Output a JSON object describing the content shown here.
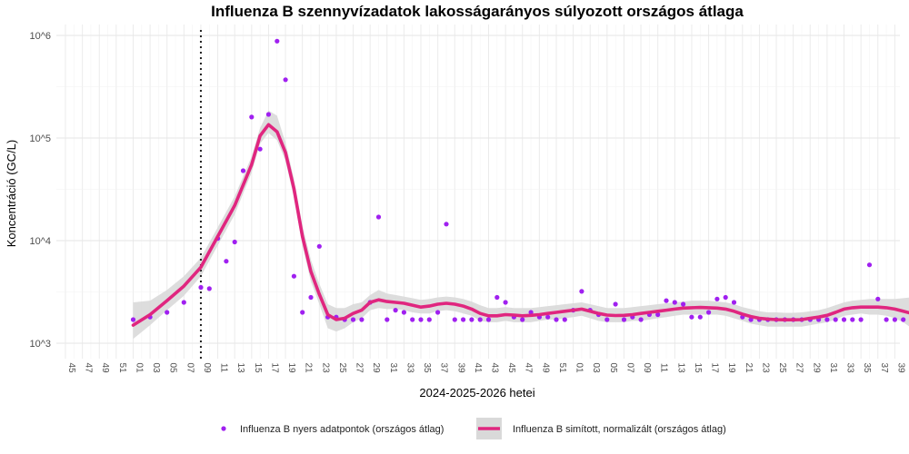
{
  "chart_data": {
    "type": "scatter+line",
    "title": "Influenza B szennyvízadatok lakosságarányos súlyozott országos átlaga",
    "xlabel": "2024-2025-2026 hetei",
    "ylabel": "Koncentráció (GC/L)",
    "y_scale": "log10",
    "y_ticks": [
      {
        "value": 1000,
        "label": "10^3"
      },
      {
        "value": 10000,
        "label": "10^4"
      },
      {
        "value": 100000,
        "label": "10^5"
      },
      {
        "value": 1000000,
        "label": "10^6"
      }
    ],
    "x_tick_labels": [
      "45",
      "47",
      "49",
      "51",
      "01",
      "03",
      "05",
      "07",
      "09",
      "11",
      "13",
      "15",
      "17",
      "19",
      "21",
      "23",
      "25",
      "27",
      "29",
      "31",
      "33",
      "35",
      "37",
      "39",
      "41",
      "43",
      "45",
      "47",
      "49",
      "51",
      "01",
      "03",
      "05",
      "07",
      "09",
      "11",
      "13",
      "15",
      "17",
      "19",
      "21",
      "23",
      "25",
      "27",
      "29",
      "31",
      "33",
      "35",
      "37",
      "39"
    ],
    "vertical_line_week": "01",
    "vertical_line_week_index": 8,
    "grid": true,
    "legend_position": "bottom",
    "raw_series": {
      "name": "Influenza B nyers adatpontok (országos átlag)",
      "color": "#a020f0",
      "points": [
        [
          4,
          1700
        ],
        [
          5,
          1800
        ],
        [
          6,
          2000
        ],
        [
          7,
          2500
        ],
        [
          8,
          3500
        ],
        [
          8.5,
          3400
        ],
        [
          9,
          10500
        ],
        [
          9.5,
          6300
        ],
        [
          10,
          9700
        ],
        [
          10.5,
          48000
        ],
        [
          11,
          160000
        ],
        [
          11.5,
          78000
        ],
        [
          12,
          170000
        ],
        [
          12.5,
          880000
        ],
        [
          13,
          370000
        ],
        [
          13.5,
          4500
        ],
        [
          14,
          2000
        ],
        [
          14.5,
          2800
        ],
        [
          15,
          8800
        ],
        [
          15.5,
          1800
        ],
        [
          16,
          1800
        ],
        [
          16.5,
          1700
        ],
        [
          17,
          1700
        ],
        [
          17.5,
          1700
        ],
        [
          18,
          2500
        ],
        [
          18.5,
          17000
        ],
        [
          19,
          1700
        ],
        [
          19.5,
          2100
        ],
        [
          20,
          2000
        ],
        [
          20.5,
          1700
        ],
        [
          21,
          1700
        ],
        [
          21.5,
          1700
        ],
        [
          22,
          2000
        ],
        [
          22.5,
          14500
        ],
        [
          23,
          1700
        ],
        [
          23.5,
          1700
        ],
        [
          24,
          1700
        ],
        [
          24.5,
          1700
        ],
        [
          25,
          1700
        ],
        [
          25.5,
          2800
        ],
        [
          26,
          2500
        ],
        [
          26.5,
          1800
        ],
        [
          27,
          1700
        ],
        [
          27.5,
          2000
        ],
        [
          28,
          1800
        ],
        [
          28.5,
          1800
        ],
        [
          29,
          1700
        ],
        [
          29.5,
          1700
        ],
        [
          30,
          2100
        ],
        [
          30.5,
          3200
        ],
        [
          31,
          2100
        ],
        [
          31.5,
          1900
        ],
        [
          32,
          1700
        ],
        [
          32.5,
          2400
        ],
        [
          33,
          1700
        ],
        [
          33.5,
          1800
        ],
        [
          34,
          1700
        ],
        [
          34.5,
          1900
        ],
        [
          35,
          1900
        ],
        [
          35.5,
          2600
        ],
        [
          36,
          2500
        ],
        [
          36.5,
          2400
        ],
        [
          37,
          1800
        ],
        [
          37.5,
          1800
        ],
        [
          38,
          2000
        ],
        [
          38.5,
          2700
        ],
        [
          39,
          2800
        ],
        [
          39.5,
          2500
        ],
        [
          40,
          1800
        ],
        [
          40.5,
          1700
        ],
        [
          41,
          1700
        ],
        [
          41.5,
          1700
        ],
        [
          42,
          1700
        ],
        [
          42.5,
          1700
        ],
        [
          43,
          1700
        ],
        [
          43.5,
          1700
        ],
        [
          44,
          1700
        ],
        [
          44.5,
          1700
        ],
        [
          45,
          1700
        ],
        [
          45.5,
          1700
        ],
        [
          46,
          1700
        ],
        [
          46.5,
          1700
        ],
        [
          47,
          1700
        ],
        [
          47.5,
          5800
        ],
        [
          48,
          2700
        ],
        [
          48.5,
          1700
        ],
        [
          49,
          1700
        ],
        [
          49.5,
          1700
        ],
        [
          50,
          2500
        ],
        [
          50.5,
          1900
        ],
        [
          51,
          1800
        ]
      ]
    },
    "smooth_series": {
      "name": "Influenza B simított, normalizált (országos átlag)",
      "color": "#e0267f",
      "band_color": "#d9d9d9",
      "points": [
        [
          4,
          1500,
          1100,
          2500
        ],
        [
          5,
          1900,
          1500,
          2600
        ],
        [
          6,
          2600,
          2100,
          3300
        ],
        [
          7,
          3600,
          2900,
          4500
        ],
        [
          8,
          5500,
          4500,
          6800
        ],
        [
          9,
          11000,
          9000,
          13500
        ],
        [
          10,
          22000,
          18000,
          27000
        ],
        [
          11,
          55000,
          46000,
          66000
        ],
        [
          11.5,
          105000,
          88000,
          125000
        ],
        [
          12,
          135000,
          112000,
          185000
        ],
        [
          12.5,
          115000,
          95000,
          165000
        ],
        [
          13,
          72000,
          60000,
          90000
        ],
        [
          13.5,
          32000,
          26000,
          40000
        ],
        [
          14,
          11000,
          9000,
          14000
        ],
        [
          14.5,
          5000,
          4000,
          6500
        ],
        [
          15,
          3000,
          2400,
          3800
        ],
        [
          15.5,
          1900,
          1400,
          2400
        ],
        [
          16,
          1700,
          1300,
          2200
        ],
        [
          16.5,
          1750,
          1400,
          2200
        ],
        [
          17,
          1950,
          1600,
          2400
        ],
        [
          17.5,
          2100,
          1750,
          2500
        ],
        [
          18,
          2500,
          2100,
          2950
        ],
        [
          18.5,
          2650,
          2200,
          3300
        ],
        [
          19,
          2550,
          2150,
          3050
        ],
        [
          19.5,
          2500,
          2150,
          2950
        ],
        [
          20,
          2450,
          2100,
          2850
        ],
        [
          20.5,
          2350,
          2000,
          2750
        ],
        [
          21,
          2250,
          1950,
          2650
        ],
        [
          21.5,
          2300,
          1950,
          2700
        ],
        [
          22,
          2400,
          2050,
          2800
        ],
        [
          22.5,
          2450,
          2100,
          2850
        ],
        [
          23,
          2400,
          2050,
          2800
        ],
        [
          23.5,
          2300,
          1950,
          2700
        ],
        [
          24,
          2150,
          1850,
          2550
        ],
        [
          24.5,
          1950,
          1650,
          2350
        ],
        [
          25,
          1850,
          1600,
          2200
        ],
        [
          25.5,
          1850,
          1600,
          2200
        ],
        [
          26,
          1900,
          1650,
          2250
        ],
        [
          26.5,
          1880,
          1600,
          2200
        ],
        [
          27,
          1850,
          1600,
          2200
        ],
        [
          27.5,
          1870,
          1600,
          2200
        ],
        [
          28,
          1900,
          1650,
          2250
        ],
        [
          28.5,
          1950,
          1700,
          2300
        ],
        [
          29,
          2000,
          1700,
          2350
        ],
        [
          29.5,
          2050,
          1750,
          2400
        ],
        [
          30,
          2100,
          1800,
          2450
        ],
        [
          30.5,
          2150,
          1850,
          2500
        ],
        [
          31,
          2050,
          1750,
          2400
        ],
        [
          31.5,
          1950,
          1650,
          2300
        ],
        [
          32,
          1880,
          1600,
          2200
        ],
        [
          32.5,
          1860,
          1600,
          2200
        ],
        [
          33,
          1870,
          1600,
          2200
        ],
        [
          33.5,
          1900,
          1650,
          2250
        ],
        [
          34,
          1950,
          1650,
          2300
        ],
        [
          34.5,
          2000,
          1700,
          2350
        ],
        [
          35,
          2050,
          1750,
          2400
        ],
        [
          35.5,
          2100,
          1800,
          2450
        ],
        [
          36,
          2150,
          1850,
          2500
        ],
        [
          36.5,
          2200,
          1900,
          2550
        ],
        [
          37,
          2220,
          1900,
          2600
        ],
        [
          37.5,
          2230,
          1900,
          2600
        ],
        [
          38,
          2220,
          1900,
          2600
        ],
        [
          38.5,
          2200,
          1900,
          2550
        ],
        [
          39,
          2150,
          1850,
          2500
        ],
        [
          39.5,
          2050,
          1750,
          2400
        ],
        [
          40,
          1920,
          1650,
          2250
        ],
        [
          40.5,
          1820,
          1550,
          2150
        ],
        [
          41,
          1750,
          1500,
          2050
        ],
        [
          41.5,
          1720,
          1450,
          2000
        ],
        [
          42,
          1700,
          1450,
          2000
        ],
        [
          42.5,
          1690,
          1450,
          1980
        ],
        [
          43,
          1690,
          1450,
          1980
        ],
        [
          43.5,
          1700,
          1450,
          2000
        ],
        [
          44,
          1750,
          1500,
          2050
        ],
        [
          44.5,
          1800,
          1550,
          2100
        ],
        [
          45,
          1870,
          1600,
          2200
        ],
        [
          45.5,
          2000,
          1700,
          2350
        ],
        [
          46,
          2150,
          1850,
          2500
        ],
        [
          46.5,
          2220,
          1900,
          2600
        ],
        [
          47,
          2250,
          1950,
          2650
        ],
        [
          47.5,
          2250,
          1900,
          2700
        ],
        [
          48,
          2250,
          1900,
          2700
        ],
        [
          48.5,
          2220,
          1850,
          2700
        ],
        [
          49,
          2150,
          1750,
          2700
        ],
        [
          49.5,
          2050,
          1600,
          2750
        ],
        [
          50,
          1950,
          1400,
          2800
        ],
        [
          50.5,
          1850,
          1200,
          2950
        ],
        [
          51,
          1780,
          1000,
          3100
        ]
      ]
    },
    "legend": {
      "raw_label": "Influenza B nyers adatpontok (országos átlag)",
      "smooth_label": "Influenza B simított, normalizált (országos átlag)"
    }
  }
}
